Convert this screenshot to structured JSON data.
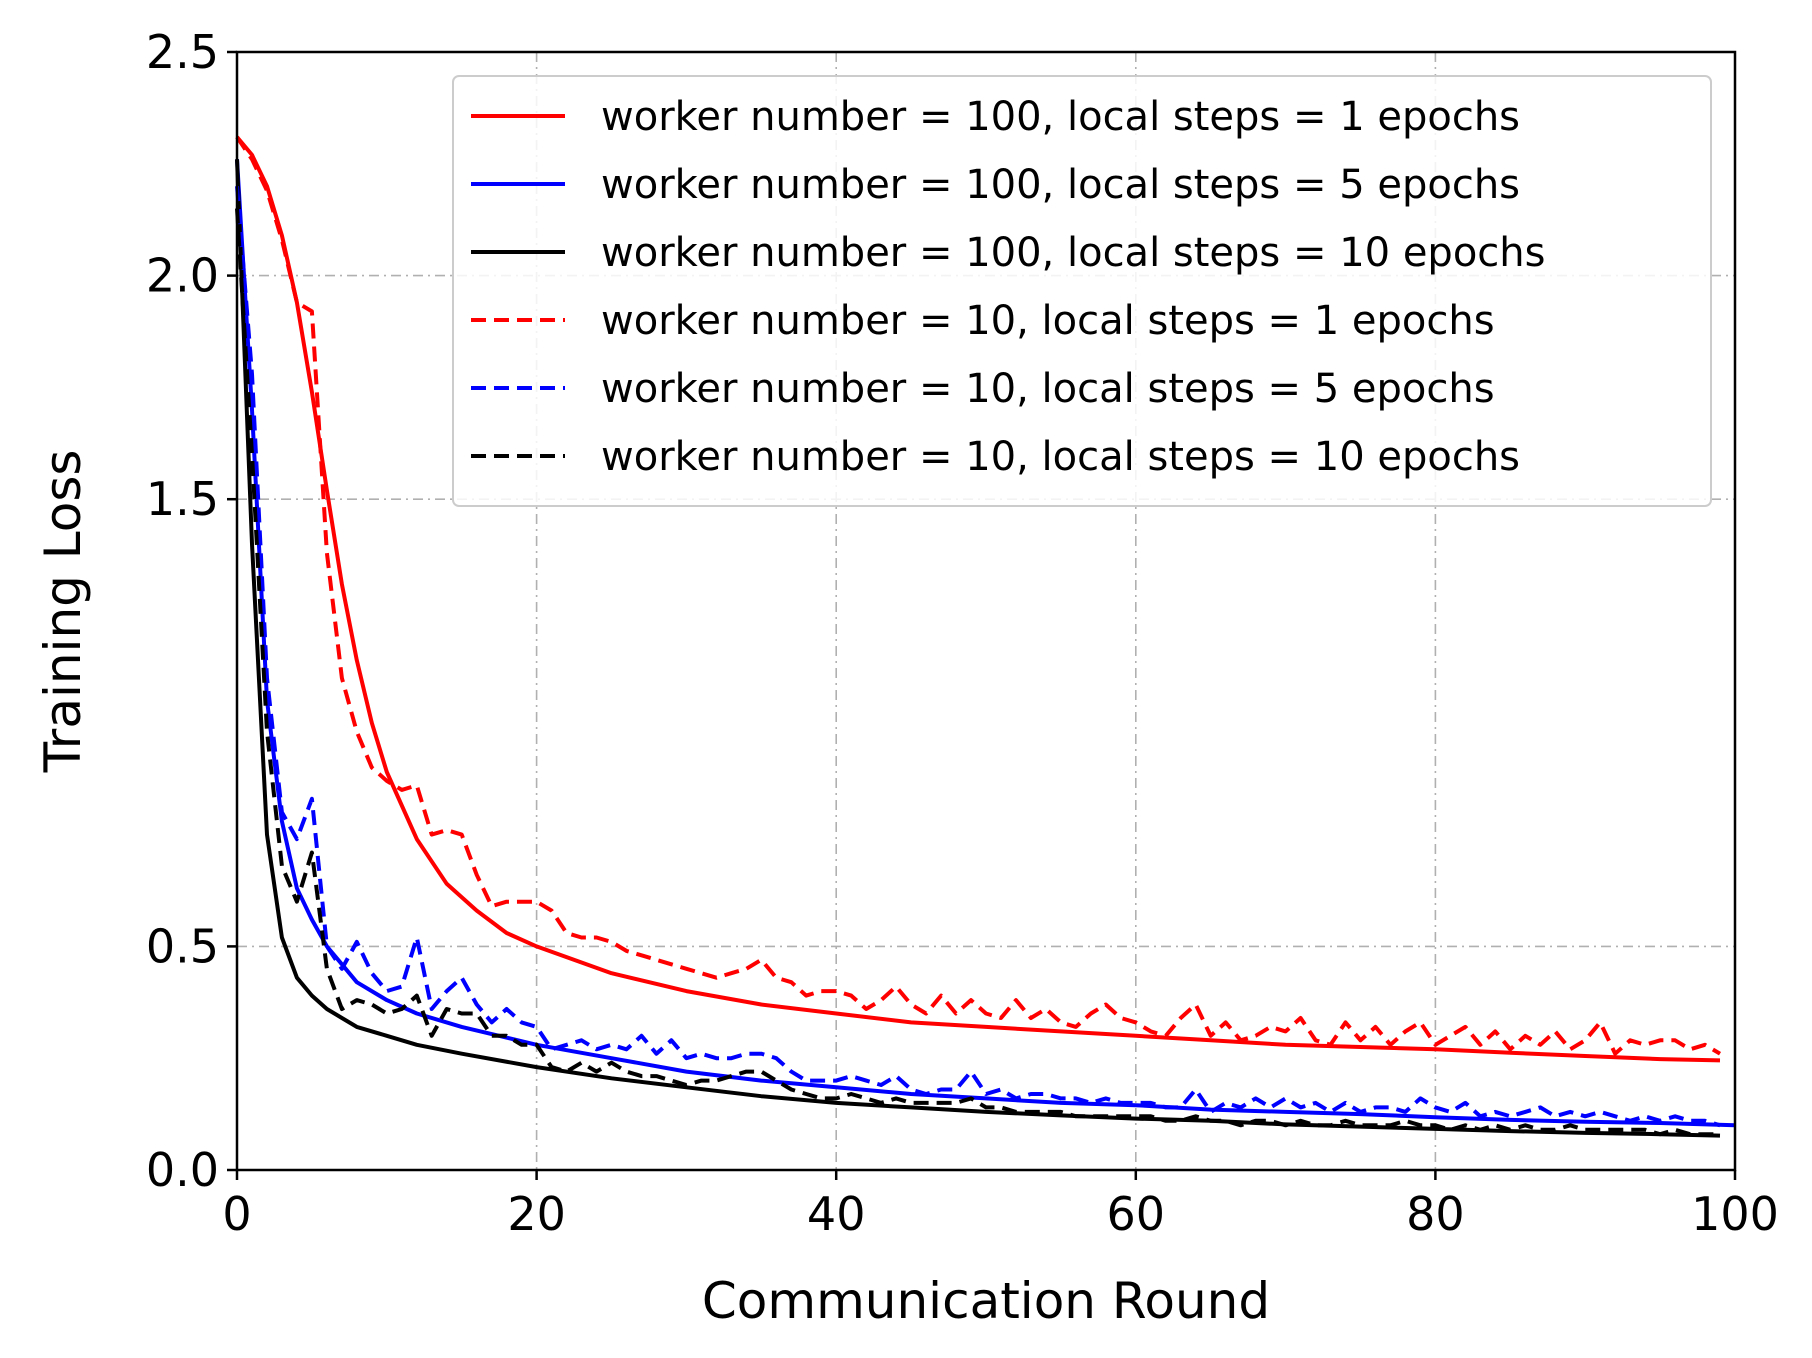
{
  "chart_data": {
    "type": "line",
    "title": "",
    "xlabel": "Communication Round",
    "ylabel": "Training Loss",
    "xlim": [
      0,
      100
    ],
    "ylim": [
      0,
      2.5
    ],
    "xticks": [
      0,
      20,
      40,
      60,
      80,
      100
    ],
    "xtick_labels": [
      "0",
      "20",
      "40",
      "60",
      "80",
      "100"
    ],
    "yticks": [
      0,
      0.5,
      1.5,
      2.0,
      2.5
    ],
    "ytick_labels": [
      "0.0",
      "0.5",
      "1.5",
      "2.0",
      "2.5"
    ],
    "grid": true,
    "legend_position": "top-right",
    "series": [
      {
        "name": "worker number = 100, local steps = 1 epochs",
        "color": "#ff0000",
        "style": "solid",
        "x": [
          0,
          1,
          2,
          3,
          4,
          5,
          6,
          7,
          8,
          9,
          10,
          12,
          14,
          16,
          18,
          20,
          25,
          30,
          35,
          40,
          45,
          50,
          55,
          60,
          65,
          70,
          75,
          80,
          85,
          90,
          95,
          99
        ],
        "y": [
          2.31,
          2.27,
          2.2,
          2.09,
          1.94,
          1.74,
          1.52,
          1.31,
          1.14,
          1.0,
          0.89,
          0.74,
          0.64,
          0.58,
          0.53,
          0.5,
          0.44,
          0.4,
          0.37,
          0.35,
          0.33,
          0.32,
          0.31,
          0.3,
          0.29,
          0.28,
          0.275,
          0.27,
          0.262,
          0.255,
          0.248,
          0.245
        ]
      },
      {
        "name": "worker number = 100, local steps = 5 epochs",
        "color": "#0000ff",
        "style": "solid",
        "x": [
          0,
          1,
          2,
          3,
          4,
          5,
          6,
          7,
          8,
          10,
          12,
          15,
          20,
          25,
          30,
          35,
          40,
          45,
          50,
          55,
          60,
          65,
          70,
          75,
          80,
          85,
          90,
          95,
          100
        ],
        "y": [
          2.26,
          1.7,
          1.05,
          0.78,
          0.63,
          0.56,
          0.5,
          0.46,
          0.42,
          0.38,
          0.35,
          0.32,
          0.28,
          0.25,
          0.22,
          0.2,
          0.185,
          0.17,
          0.16,
          0.15,
          0.145,
          0.135,
          0.13,
          0.125,
          0.118,
          0.112,
          0.108,
          0.105,
          0.1
        ]
      },
      {
        "name": "worker number = 100, local steps = 10 epochs",
        "color": "#000000",
        "style": "solid",
        "x": [
          0,
          1,
          2,
          3,
          4,
          5,
          6,
          7,
          8,
          10,
          12,
          15,
          20,
          25,
          30,
          35,
          40,
          45,
          50,
          55,
          60,
          65,
          70,
          75,
          80,
          85,
          90,
          95,
          99
        ],
        "y": [
          2.26,
          1.4,
          0.75,
          0.52,
          0.43,
          0.39,
          0.36,
          0.34,
          0.32,
          0.3,
          0.28,
          0.26,
          0.23,
          0.205,
          0.185,
          0.165,
          0.15,
          0.14,
          0.13,
          0.122,
          0.115,
          0.11,
          0.102,
          0.097,
          0.092,
          0.087,
          0.083,
          0.08,
          0.077
        ]
      },
      {
        "name": "worker number = 10, local steps = 1 epochs",
        "color": "#ff0000",
        "style": "dashed",
        "x": [
          0,
          1,
          2,
          3,
          4,
          5,
          6,
          7,
          8,
          9,
          10,
          11,
          12,
          13,
          14,
          15,
          16,
          17,
          18,
          19,
          20,
          21,
          22,
          23,
          24,
          25,
          26,
          27,
          28,
          29,
          30,
          31,
          32,
          33,
          34,
          35,
          36,
          37,
          38,
          39,
          40,
          41,
          42,
          43,
          44,
          45,
          46,
          47,
          48,
          49,
          50,
          51,
          52,
          53,
          54,
          55,
          56,
          57,
          58,
          59,
          60,
          61,
          62,
          63,
          64,
          65,
          66,
          67,
          68,
          69,
          70,
          71,
          72,
          73,
          74,
          75,
          76,
          77,
          78,
          79,
          80,
          81,
          82,
          83,
          84,
          85,
          86,
          87,
          88,
          89,
          90,
          91,
          92,
          93,
          94,
          95,
          96,
          97,
          98,
          99
        ],
        "y": [
          2.31,
          2.26,
          2.19,
          2.08,
          1.94,
          1.92,
          1.38,
          1.1,
          0.98,
          0.9,
          0.87,
          0.85,
          0.86,
          0.75,
          0.76,
          0.75,
          0.66,
          0.59,
          0.6,
          0.6,
          0.6,
          0.58,
          0.53,
          0.52,
          0.52,
          0.51,
          0.49,
          0.48,
          0.47,
          0.46,
          0.45,
          0.44,
          0.43,
          0.44,
          0.45,
          0.47,
          0.43,
          0.42,
          0.39,
          0.4,
          0.4,
          0.39,
          0.36,
          0.38,
          0.41,
          0.37,
          0.35,
          0.39,
          0.35,
          0.38,
          0.35,
          0.34,
          0.38,
          0.34,
          0.36,
          0.33,
          0.32,
          0.35,
          0.37,
          0.34,
          0.33,
          0.31,
          0.3,
          0.34,
          0.37,
          0.3,
          0.33,
          0.29,
          0.3,
          0.32,
          0.31,
          0.34,
          0.29,
          0.28,
          0.33,
          0.29,
          0.32,
          0.28,
          0.31,
          0.33,
          0.28,
          0.3,
          0.32,
          0.28,
          0.31,
          0.27,
          0.3,
          0.28,
          0.31,
          0.27,
          0.29,
          0.33,
          0.26,
          0.29,
          0.28,
          0.29,
          0.29,
          0.27,
          0.28,
          0.26
        ]
      },
      {
        "name": "worker number = 10, local steps = 5 epochs",
        "color": "#0000ff",
        "style": "dashed",
        "x": [
          0,
          1,
          2,
          3,
          4,
          5,
          6,
          7,
          8,
          9,
          10,
          11,
          12,
          13,
          14,
          15,
          16,
          17,
          18,
          19,
          20,
          21,
          22,
          23,
          24,
          25,
          26,
          27,
          28,
          29,
          30,
          31,
          32,
          33,
          34,
          35,
          36,
          37,
          38,
          39,
          40,
          41,
          42,
          43,
          44,
          45,
          46,
          47,
          48,
          49,
          50,
          51,
          52,
          53,
          54,
          55,
          56,
          57,
          58,
          59,
          60,
          61,
          62,
          63,
          64,
          65,
          66,
          67,
          68,
          69,
          70,
          71,
          72,
          73,
          74,
          75,
          76,
          77,
          78,
          79,
          80,
          81,
          82,
          83,
          84,
          85,
          86,
          87,
          88,
          89,
          90,
          91,
          92,
          93,
          94,
          95,
          96,
          97,
          98,
          99
        ],
        "y": [
          2.2,
          1.78,
          1.1,
          0.8,
          0.74,
          0.83,
          0.5,
          0.45,
          0.51,
          0.44,
          0.4,
          0.41,
          0.52,
          0.36,
          0.4,
          0.43,
          0.37,
          0.33,
          0.36,
          0.33,
          0.32,
          0.27,
          0.28,
          0.29,
          0.27,
          0.28,
          0.27,
          0.3,
          0.26,
          0.29,
          0.25,
          0.26,
          0.25,
          0.25,
          0.26,
          0.26,
          0.25,
          0.22,
          0.2,
          0.2,
          0.2,
          0.21,
          0.2,
          0.19,
          0.21,
          0.18,
          0.17,
          0.18,
          0.18,
          0.22,
          0.17,
          0.18,
          0.16,
          0.17,
          0.17,
          0.16,
          0.16,
          0.15,
          0.16,
          0.15,
          0.15,
          0.15,
          0.14,
          0.14,
          0.18,
          0.13,
          0.15,
          0.14,
          0.16,
          0.14,
          0.16,
          0.14,
          0.15,
          0.13,
          0.15,
          0.13,
          0.14,
          0.14,
          0.13,
          0.16,
          0.14,
          0.13,
          0.15,
          0.12,
          0.13,
          0.12,
          0.13,
          0.14,
          0.12,
          0.13,
          0.12,
          0.13,
          0.12,
          0.11,
          0.12,
          0.11,
          0.12,
          0.11,
          0.11,
          0.1
        ]
      },
      {
        "name": "worker number = 10, local steps = 10 epochs",
        "color": "#000000",
        "style": "dashed",
        "x": [
          0,
          1,
          2,
          3,
          4,
          5,
          6,
          7,
          8,
          9,
          10,
          11,
          12,
          13,
          14,
          15,
          16,
          17,
          18,
          19,
          20,
          21,
          22,
          23,
          24,
          25,
          26,
          27,
          28,
          29,
          30,
          31,
          32,
          33,
          34,
          35,
          36,
          37,
          38,
          39,
          40,
          41,
          42,
          43,
          44,
          45,
          46,
          47,
          48,
          49,
          50,
          51,
          52,
          53,
          54,
          55,
          56,
          57,
          58,
          59,
          60,
          61,
          62,
          63,
          64,
          65,
          66,
          67,
          68,
          69,
          70,
          71,
          72,
          73,
          74,
          75,
          76,
          77,
          78,
          79,
          80,
          81,
          82,
          83,
          84,
          85,
          86,
          87,
          88,
          89,
          90,
          91,
          92,
          93,
          94,
          95,
          96,
          97,
          98,
          99
        ],
        "y": [
          2.15,
          1.6,
          0.98,
          0.68,
          0.6,
          0.71,
          0.45,
          0.36,
          0.38,
          0.37,
          0.35,
          0.36,
          0.39,
          0.3,
          0.36,
          0.35,
          0.35,
          0.3,
          0.3,
          0.28,
          0.28,
          0.23,
          0.22,
          0.24,
          0.22,
          0.24,
          0.22,
          0.21,
          0.21,
          0.2,
          0.19,
          0.2,
          0.2,
          0.21,
          0.22,
          0.22,
          0.2,
          0.18,
          0.17,
          0.16,
          0.16,
          0.17,
          0.16,
          0.15,
          0.16,
          0.15,
          0.15,
          0.15,
          0.15,
          0.16,
          0.14,
          0.14,
          0.13,
          0.13,
          0.13,
          0.13,
          0.12,
          0.12,
          0.12,
          0.12,
          0.12,
          0.12,
          0.11,
          0.11,
          0.12,
          0.11,
          0.11,
          0.1,
          0.11,
          0.11,
          0.1,
          0.11,
          0.1,
          0.1,
          0.11,
          0.1,
          0.1,
          0.1,
          0.11,
          0.1,
          0.1,
          0.09,
          0.1,
          0.09,
          0.1,
          0.09,
          0.1,
          0.09,
          0.09,
          0.1,
          0.09,
          0.09,
          0.09,
          0.09,
          0.09,
          0.08,
          0.09,
          0.08,
          0.08,
          0.08
        ]
      }
    ]
  }
}
